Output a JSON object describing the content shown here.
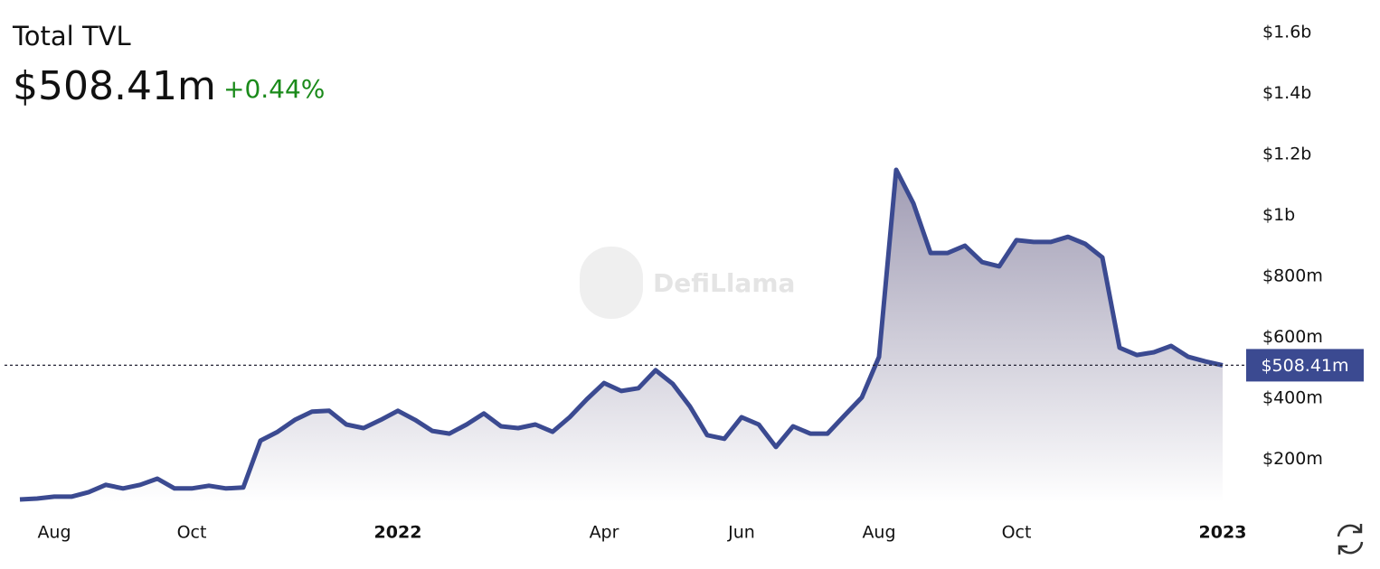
{
  "chart_data": {
    "type": "area",
    "title": "Total TVL",
    "current": {
      "value": 508.41,
      "label": "$508.41m"
    },
    "change": {
      "value": 0.44,
      "label": "+0.44%"
    },
    "watermark": "DefiLlama",
    "color": "#3b4a91",
    "categories": [
      null,
      null,
      "Aug",
      null,
      null,
      null,
      null,
      null,
      null,
      null,
      "Oct",
      null,
      null,
      null,
      null,
      null,
      null,
      null,
      null,
      null,
      null,
      null,
      "2022",
      null,
      null,
      null,
      null,
      null,
      null,
      null,
      null,
      null,
      null,
      null,
      "Apr",
      null,
      null,
      null,
      null,
      null,
      null,
      null,
      "Jun",
      null,
      null,
      null,
      null,
      null,
      null,
      null,
      "Aug",
      null,
      null,
      null,
      null,
      null,
      null,
      null,
      "Oct",
      null,
      null,
      null,
      null,
      null,
      null,
      null,
      null,
      null,
      null,
      null,
      "2023"
    ],
    "values": [
      68,
      71,
      77,
      77,
      92,
      116,
      104,
      116,
      136,
      104,
      104,
      113,
      104,
      107,
      261,
      290,
      329,
      356,
      359,
      314,
      302,
      329,
      359,
      329,
      293,
      284,
      314,
      350,
      308,
      302,
      314,
      290,
      338,
      397,
      450,
      424,
      433,
      492,
      447,
      373,
      279,
      267,
      338,
      314,
      240,
      308,
      284,
      284,
      344,
      403,
      536,
      1150,
      1040,
      877,
      877,
      901,
      847,
      833,
      919,
      913,
      913,
      930,
      907,
      862,
      566,
      542,
      551,
      572,
      536,
      521,
      508.41
    ],
    "ylim": [
      59,
      1651
    ],
    "yticks": [
      {
        "value": 200,
        "label": "$200m"
      },
      {
        "value": 400,
        "label": "$400m"
      },
      {
        "value": 600,
        "label": "$600m"
      },
      {
        "value": 800,
        "label": "$800m"
      },
      {
        "value": 1000,
        "label": "$1b"
      },
      {
        "value": 1200,
        "label": "$1.2b"
      },
      {
        "value": 1400,
        "label": "$1.4b"
      },
      {
        "value": 1600,
        "label": "$1.6b"
      }
    ]
  }
}
